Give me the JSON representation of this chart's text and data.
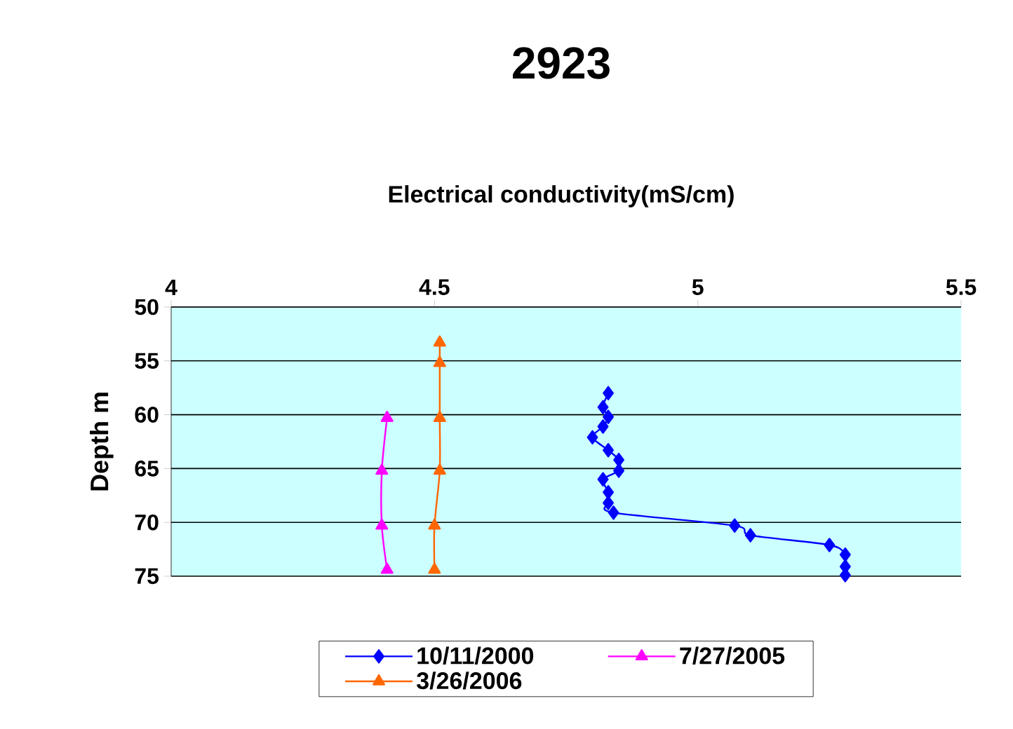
{
  "chart_data": {
    "type": "line",
    "title": "2923",
    "xlabel": "Electrical conductivity(mS/cm)",
    "ylabel": "Depth m",
    "xlim": [
      4,
      5.5
    ],
    "xticks": [
      4,
      4.5,
      5,
      5.5
    ],
    "ylim": [
      75,
      50
    ],
    "yticks": [
      50,
      55,
      60,
      65,
      70,
      75
    ],
    "grid": "y",
    "legend": "bottom",
    "line_style": "solid",
    "series": [
      {
        "name": "10/11/2000",
        "color": "#0000ff",
        "marker": "diamond",
        "x": [
          4.83,
          4.82,
          4.83,
          4.82,
          4.8,
          4.83,
          4.85,
          4.85,
          4.82,
          4.83,
          4.83,
          4.84,
          5.07,
          5.1,
          5.25,
          5.28,
          5.28,
          5.28
        ],
        "values": [
          58,
          59.3,
          60.2,
          61.1,
          62.1,
          63.3,
          64.2,
          65.2,
          66,
          67.2,
          68.2,
          69.1,
          70.3,
          71.2,
          72.1,
          73,
          74.1,
          74.9
        ]
      },
      {
        "name": "7/27/2005",
        "color": "#ff00ff",
        "marker": "triangle",
        "x": [
          4.41,
          4.4,
          4.4,
          4.41
        ],
        "values": [
          60.3,
          65.2,
          70.3,
          74.4
        ]
      },
      {
        "name": "3/26/2006",
        "color": "#ff6600",
        "marker": "triangle",
        "x": [
          4.51,
          4.51,
          4.51,
          4.51,
          4.5,
          4.5
        ],
        "values": [
          53.3,
          55.2,
          60.3,
          65.2,
          70.3,
          74.4
        ]
      }
    ]
  }
}
